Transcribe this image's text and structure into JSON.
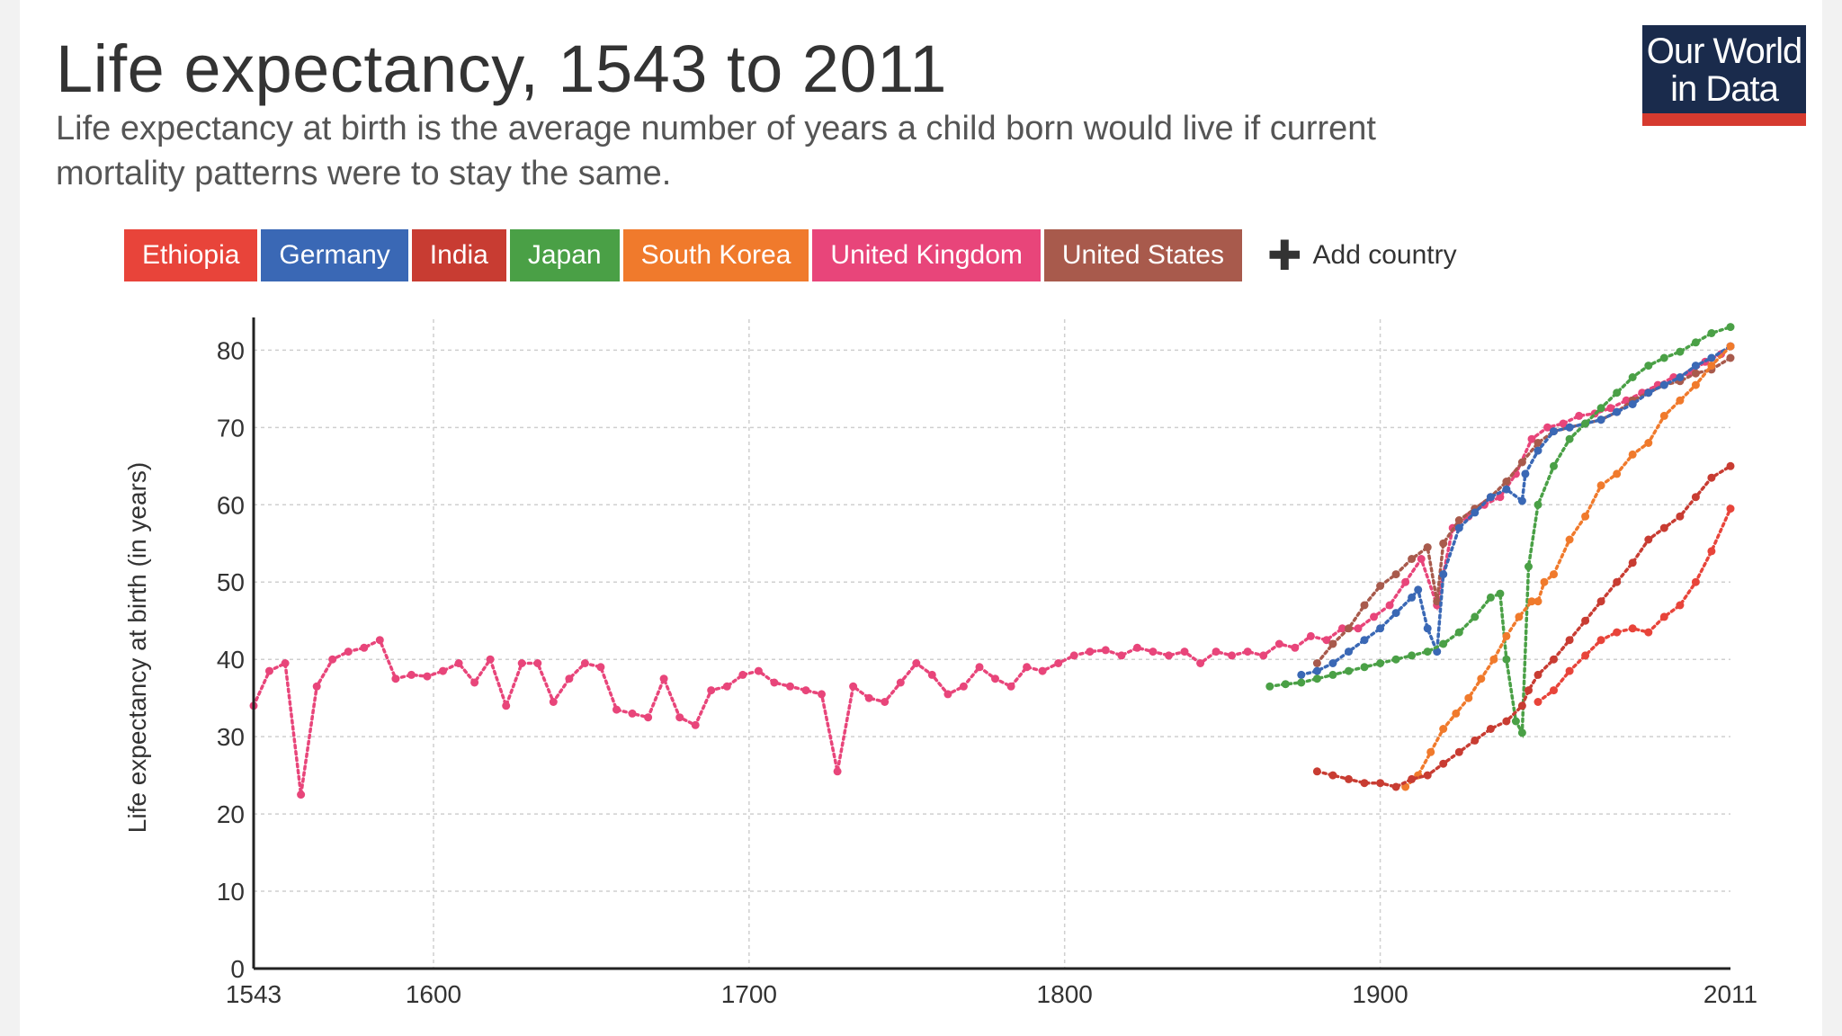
{
  "header": {
    "title": "Life expectancy, 1543 to 2011",
    "subtitle": "Life expectancy at birth is the average number of years a child born would live if current mortality patterns were to stay the same."
  },
  "logo": {
    "line1": "Our World",
    "line2": "in Data"
  },
  "legend": {
    "add_label": "Add country",
    "items": [
      {
        "label": "Ethiopia",
        "color": "#e8443a"
      },
      {
        "label": "Germany",
        "color": "#3a68b5"
      },
      {
        "label": "India",
        "color": "#c83c32"
      },
      {
        "label": "Japan",
        "color": "#4aa046"
      },
      {
        "label": "South Korea",
        "color": "#f07a2c"
      },
      {
        "label": "United Kingdom",
        "color": "#e8457a"
      },
      {
        "label": "United States",
        "color": "#a85a4c"
      }
    ]
  },
  "chart_data": {
    "type": "line",
    "title": "Life expectancy, 1543 to 2011",
    "ylabel": "Life expectancy at birth (in years)",
    "xlabel": "",
    "xlim": [
      1543,
      2011
    ],
    "ylim": [
      0,
      84
    ],
    "x_ticks": [
      "1543",
      "1600",
      "1700",
      "1800",
      "1900",
      "2011"
    ],
    "y_ticks": [
      "0",
      "10",
      "20",
      "30",
      "40",
      "50",
      "60",
      "70",
      "80"
    ],
    "grid": true,
    "series": [
      {
        "name": "United Kingdom",
        "color": "#e8457a",
        "x": [
          1543,
          1548,
          1553,
          1558,
          1563,
          1568,
          1573,
          1578,
          1583,
          1588,
          1593,
          1598,
          1603,
          1608,
          1613,
          1618,
          1623,
          1628,
          1633,
          1638,
          1643,
          1648,
          1653,
          1658,
          1663,
          1668,
          1673,
          1678,
          1683,
          1688,
          1693,
          1698,
          1703,
          1708,
          1713,
          1718,
          1723,
          1728,
          1733,
          1738,
          1743,
          1748,
          1753,
          1758,
          1763,
          1768,
          1773,
          1778,
          1783,
          1788,
          1793,
          1798,
          1803,
          1808,
          1813,
          1818,
          1823,
          1828,
          1833,
          1838,
          1843,
          1848,
          1853,
          1858,
          1863,
          1868,
          1873,
          1878,
          1883,
          1888,
          1893,
          1898,
          1903,
          1908,
          1913,
          1918,
          1923,
          1928,
          1933,
          1938,
          1943,
          1948,
          1953,
          1958,
          1963,
          1968,
          1973,
          1978,
          1983,
          1988,
          1993,
          1998,
          2003,
          2008,
          2011
        ],
        "values": [
          34,
          38.5,
          39.5,
          22.5,
          36.5,
          40,
          41,
          41.5,
          42.5,
          37.5,
          38,
          37.8,
          38.5,
          39.5,
          37,
          40,
          34,
          39.5,
          39.5,
          34.5,
          37.5,
          39.5,
          39,
          33.5,
          33,
          32.5,
          37.5,
          32.5,
          31.5,
          36,
          36.5,
          38,
          38.5,
          37,
          36.5,
          36,
          35.5,
          25.5,
          36.5,
          35,
          34.5,
          37,
          39.5,
          38,
          35.5,
          36.5,
          39,
          37.5,
          36.5,
          39,
          38.5,
          39.5,
          40.5,
          41,
          41.2,
          40.5,
          41.5,
          41,
          40.5,
          41,
          39.5,
          41,
          40.5,
          41,
          40.5,
          42,
          41.5,
          43,
          42.5,
          44,
          44,
          45.5,
          47,
          50,
          53,
          47,
          57,
          58.5,
          60,
          61,
          64,
          68.5,
          70,
          70.5,
          71.5,
          71.8,
          72.5,
          73.5,
          74.5,
          75.5,
          76.5,
          77,
          78.5,
          79.5,
          80.5
        ]
      },
      {
        "name": "United States",
        "color": "#a85a4c",
        "x": [
          1880,
          1885,
          1890,
          1895,
          1900,
          1905,
          1910,
          1915,
          1918,
          1920,
          1925,
          1930,
          1935,
          1940,
          1945,
          1950,
          1955,
          1960,
          1965,
          1970,
          1975,
          1980,
          1985,
          1990,
          1995,
          2000,
          2005,
          2011
        ],
        "values": [
          39.5,
          42,
          44,
          47,
          49.5,
          51,
          53,
          54.5,
          47.5,
          55,
          58,
          59.5,
          61,
          63,
          65.5,
          68,
          69.5,
          70,
          70.5,
          71,
          72,
          73.5,
          74.5,
          75.5,
          76,
          77,
          77.5,
          79
        ]
      },
      {
        "name": "Germany",
        "color": "#3a68b5",
        "x": [
          1875,
          1880,
          1885,
          1890,
          1895,
          1900,
          1905,
          1910,
          1912,
          1915,
          1918,
          1920,
          1925,
          1930,
          1935,
          1940,
          1945,
          1946,
          1950,
          1955,
          1960,
          1965,
          1970,
          1975,
          1980,
          1985,
          1990,
          1995,
          2000,
          2005,
          2011
        ],
        "values": [
          38,
          38.5,
          39.5,
          41,
          42.5,
          44,
          46,
          48,
          49,
          44,
          41,
          51,
          57,
          59,
          61,
          62,
          60.5,
          64,
          67,
          69.5,
          70,
          70.5,
          71,
          72,
          73,
          74.5,
          75.5,
          76.5,
          78,
          79,
          80.5
        ]
      },
      {
        "name": "Japan",
        "color": "#4aa046",
        "x": [
          1865,
          1870,
          1875,
          1880,
          1885,
          1890,
          1895,
          1900,
          1905,
          1910,
          1915,
          1920,
          1925,
          1930,
          1935,
          1938,
          1940,
          1943,
          1945,
          1947,
          1950,
          1955,
          1960,
          1965,
          1970,
          1975,
          1980,
          1985,
          1990,
          1995,
          2000,
          2005,
          2011
        ],
        "values": [
          36.5,
          36.8,
          37,
          37.5,
          38,
          38.5,
          39,
          39.5,
          40,
          40.5,
          41,
          42,
          43.5,
          45.5,
          48,
          48.5,
          40,
          32,
          30.5,
          52,
          60,
          65,
          68.5,
          70.5,
          72.5,
          74.5,
          76.5,
          78,
          79,
          79.8,
          81,
          82.2,
          83
        ]
      },
      {
        "name": "South Korea",
        "color": "#f07a2c",
        "x": [
          1908,
          1912,
          1916,
          1920,
          1924,
          1928,
          1932,
          1936,
          1940,
          1944,
          1948,
          1950,
          1952,
          1955,
          1960,
          1965,
          1970,
          1975,
          1980,
          1985,
          1990,
          1995,
          2000,
          2005,
          2011
        ],
        "values": [
          23.5,
          25,
          28,
          31,
          33,
          35,
          37.5,
          40,
          43,
          45.5,
          47.5,
          47.5,
          50,
          51,
          55.5,
          58.5,
          62.5,
          64,
          66.5,
          68,
          71.5,
          73.5,
          75.5,
          78,
          80.5
        ]
      },
      {
        "name": "India",
        "color": "#c83c32",
        "x": [
          1880,
          1885,
          1890,
          1895,
          1900,
          1905,
          1910,
          1915,
          1920,
          1925,
          1930,
          1935,
          1940,
          1945,
          1947,
          1950,
          1955,
          1960,
          1965,
          1970,
          1975,
          1980,
          1985,
          1990,
          1995,
          2000,
          2005,
          2011
        ],
        "values": [
          25.5,
          25,
          24.5,
          24,
          24,
          23.5,
          24.5,
          25,
          26.5,
          28,
          29.5,
          31,
          32,
          34,
          36,
          38,
          40,
          42.5,
          45,
          47.5,
          50,
          52.5,
          55.5,
          57,
          58.5,
          61,
          63.5,
          65
        ]
      },
      {
        "name": "Ethiopia",
        "color": "#e8443a",
        "x": [
          1950,
          1955,
          1960,
          1965,
          1970,
          1975,
          1980,
          1985,
          1990,
          1995,
          2000,
          2005,
          2011
        ],
        "values": [
          34.5,
          36,
          38.5,
          40.5,
          42.5,
          43.5,
          44,
          43.5,
          45.5,
          47,
          50,
          54,
          59.5
        ]
      }
    ]
  }
}
